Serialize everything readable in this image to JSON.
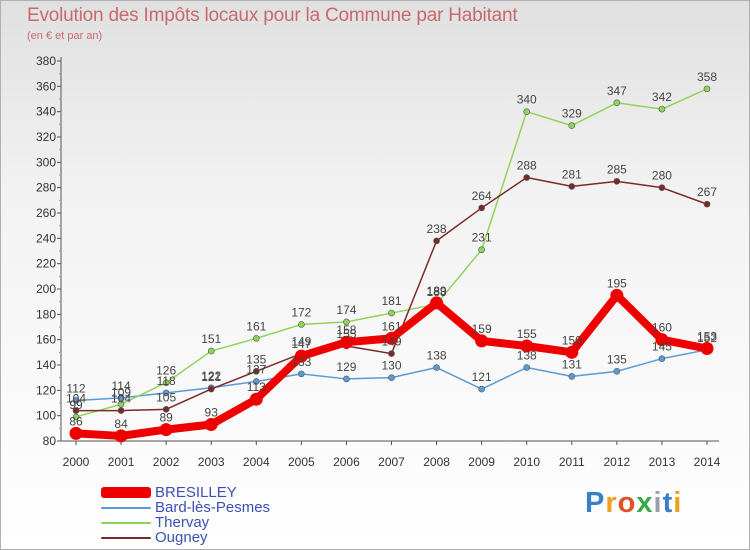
{
  "title": "Evolution des Impôts locaux pour la Commune par Habitant",
  "subtitle": "(en € et par an)",
  "logo": "Proxiti",
  "chart_data": {
    "type": "line",
    "title": "Evolution des Impôts locaux pour la Commune par Habitant",
    "subtitle": "(en € et par an)",
    "xlabel": "",
    "ylabel": "",
    "ylim": [
      80,
      380
    ],
    "y_ticks": [
      80,
      100,
      120,
      140,
      160,
      180,
      200,
      220,
      240,
      260,
      280,
      300,
      320,
      340,
      360,
      380
    ],
    "x": [
      "2000",
      "2001",
      "2002",
      "2003",
      "2004",
      "2005",
      "2006",
      "2007",
      "2008",
      "2009",
      "2010",
      "2011",
      "2012",
      "2013",
      "2014"
    ],
    "grid": false,
    "legend_position": "bottom-left",
    "series": [
      {
        "name": "Bard-lès-Pesmes",
        "color": "#5a9bd5",
        "values": [
          112,
          114,
          118,
          122,
          127,
          133,
          129,
          130,
          138,
          121,
          138,
          131,
          135,
          145,
          152
        ],
        "labels": [
          "112",
          "114",
          "118",
          "122",
          "127",
          "133",
          "129",
          "130",
          "138",
          "121",
          "138",
          "131",
          "135",
          "145",
          "152"
        ]
      },
      {
        "name": "Thervay",
        "color": "#8ed45a",
        "values": [
          99,
          109,
          126,
          151,
          161,
          172,
          174,
          181,
          188,
          231,
          340,
          329,
          347,
          342,
          358
        ],
        "labels": [
          "99",
          "109",
          "126",
          "151",
          "161",
          "172",
          "174",
          "181",
          "188",
          "231",
          "340",
          "329",
          "347",
          "342",
          "358"
        ]
      },
      {
        "name": "Ougney",
        "color": "#7a2a2a",
        "values": [
          104,
          104,
          105,
          121,
          135,
          149,
          155,
          149,
          238,
          264,
          288,
          281,
          285,
          280,
          267
        ],
        "labels": [
          "104",
          "104",
          "105",
          "121",
          "135",
          "149",
          "155",
          "149",
          "238",
          "264",
          "288",
          "281",
          "285",
          "280",
          "267"
        ]
      },
      {
        "name": "BRESILLEY",
        "color": "#ee0000",
        "values": [
          86,
          84,
          89,
          93,
          113,
          147,
          158,
          161,
          189,
          159,
          155,
          150,
          195,
          160,
          153
        ],
        "labels": [
          "86",
          "84",
          "89",
          "93",
          "113",
          "147",
          "158",
          "161",
          "189",
          "159",
          "155",
          "150",
          "195",
          "160",
          "153"
        ]
      }
    ],
    "legend": [
      "BRESILLEY",
      "Bard-lès-Pesmes",
      "Thervay",
      "Ougney"
    ]
  }
}
